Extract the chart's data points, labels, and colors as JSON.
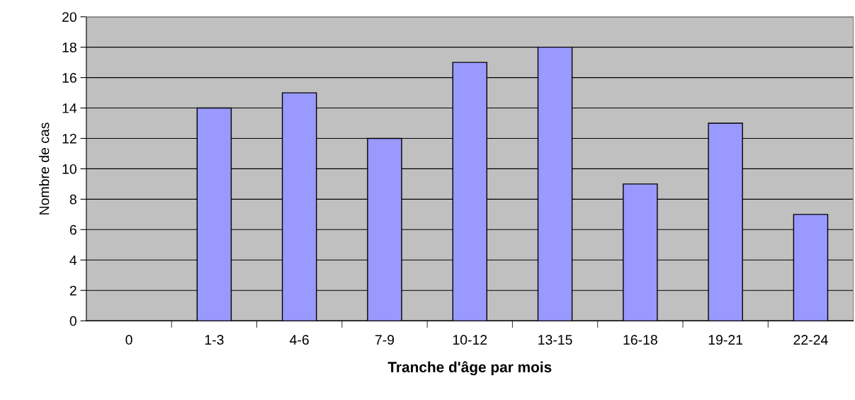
{
  "chart_data": {
    "type": "bar",
    "xlabel": "Tranche d'âge par mois",
    "ylabel": "Nombre de cas",
    "categories": [
      "0",
      "1-3",
      "4-6",
      "7-9",
      "10-12",
      "13-15",
      "16-18",
      "19-21",
      "22-24"
    ],
    "values": [
      0,
      14,
      15,
      12,
      17,
      18,
      9,
      13,
      7
    ],
    "color": "#9999ff",
    "ylim": [
      0,
      20
    ],
    "yticks": [
      0,
      2,
      4,
      6,
      8,
      10,
      12,
      14,
      16,
      18,
      20
    ],
    "grid": "y",
    "legend": false
  }
}
